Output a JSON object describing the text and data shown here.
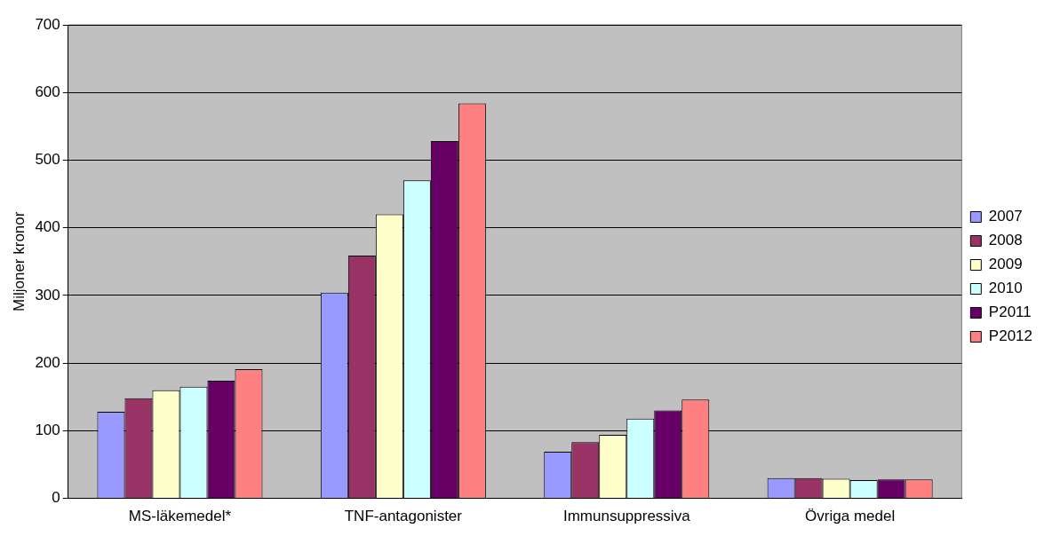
{
  "chart_data": {
    "type": "bar",
    "ylabel": "Miljoner kronor",
    "categories": [
      "MS-läkemedel*",
      "TNF-antagonister",
      "Immunsuppressiva",
      "Övriga medel"
    ],
    "series": [
      {
        "name": "2007",
        "color": "#9999ff",
        "values": [
          128,
          304,
          69,
          30
        ]
      },
      {
        "name": "2008",
        "color": "#993366",
        "values": [
          148,
          359,
          83,
          30
        ]
      },
      {
        "name": "2009",
        "color": "#ffffcc",
        "values": [
          160,
          420,
          94,
          29
        ]
      },
      {
        "name": "2010",
        "color": "#ccffff",
        "values": [
          165,
          470,
          118,
          27
        ]
      },
      {
        "name": "P2011",
        "color": "#660066",
        "values": [
          174,
          528,
          130,
          28
        ]
      },
      {
        "name": "P2012",
        "color": "#ff8080",
        "values": [
          191,
          584,
          146,
          28
        ]
      }
    ],
    "ylim": [
      0,
      700
    ],
    "yticks": [
      0,
      100,
      200,
      300,
      400,
      500,
      600,
      700
    ],
    "grid": "y",
    "legend": "right"
  }
}
